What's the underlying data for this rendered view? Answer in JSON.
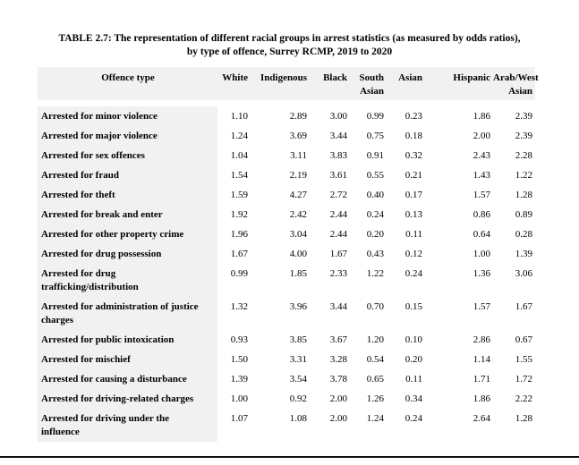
{
  "caption": {
    "line1": "TABLE 2.7: The representation of different racial groups in arrest statistics (as measured by odds ratios),",
    "line2": "by type of offence, Surrey RCMP, 2019 to 2020"
  },
  "table": {
    "columns": [
      "Offence type",
      "White",
      "Indigenous",
      "Black",
      "South\nAsian",
      "Asian",
      "Hispanic",
      "Arab/West\nAsian"
    ],
    "rows": [
      {
        "offence": "Arrested for minor violence",
        "values": [
          "1.10",
          "2.89",
          "3.00",
          "0.99",
          "0.23",
          "1.86",
          "2.39"
        ]
      },
      {
        "offence": "Arrested for major violence",
        "values": [
          "1.24",
          "3.69",
          "3.44",
          "0.75",
          "0.18",
          "2.00",
          "2.39"
        ]
      },
      {
        "offence": "Arrested for sex offences",
        "values": [
          "1.04",
          "3.11",
          "3.83",
          "0.91",
          "0.32",
          "2.43",
          "2.28"
        ]
      },
      {
        "offence": "Arrested for fraud",
        "values": [
          "1.54",
          "2.19",
          "3.61",
          "0.55",
          "0.21",
          "1.43",
          "1.22"
        ]
      },
      {
        "offence": "Arrested for theft",
        "values": [
          "1.59",
          "4.27",
          "2.72",
          "0.40",
          "0.17",
          "1.57",
          "1.28"
        ]
      },
      {
        "offence": "Arrested for break and enter",
        "values": [
          "1.92",
          "2.42",
          "2.44",
          "0.24",
          "0.13",
          "0.86",
          "0.89"
        ]
      },
      {
        "offence": "Arrested for other property crime",
        "values": [
          "1.96",
          "3.04",
          "2.44",
          "0.20",
          "0.11",
          "0.64",
          "0.28"
        ]
      },
      {
        "offence": "Arrested for drug possession",
        "values": [
          "1.67",
          "4.00",
          "1.67",
          "0.43",
          "0.12",
          "1.00",
          "1.39"
        ]
      },
      {
        "offence": "Arrested for drug\ntrafficking/distribution",
        "values": [
          "0.99",
          "1.85",
          "2.33",
          "1.22",
          "0.24",
          "1.36",
          "3.06"
        ]
      },
      {
        "offence": "Arrested for administration of justice\ncharges",
        "values": [
          "1.32",
          "3.96",
          "3.44",
          "0.70",
          "0.15",
          "1.57",
          "1.67"
        ]
      },
      {
        "offence": "Arrested for public intoxication",
        "values": [
          "0.93",
          "3.85",
          "3.67",
          "1.20",
          "0.10",
          "2.86",
          "0.67"
        ]
      },
      {
        "offence": "Arrested for mischief",
        "values": [
          "1.50",
          "3.31",
          "3.28",
          "0.54",
          "0.20",
          "1.14",
          "1.55"
        ]
      },
      {
        "offence": "Arrested for causing a disturbance",
        "values": [
          "1.39",
          "3.54",
          "3.78",
          "0.65",
          "0.11",
          "1.71",
          "1.72"
        ]
      },
      {
        "offence": "Arrested for driving-related charges",
        "values": [
          "1.00",
          "0.92",
          "2.00",
          "1.26",
          "0.34",
          "1.86",
          "2.22"
        ]
      },
      {
        "offence": "Arrested for driving under the\ninfluence",
        "values": [
          "1.07",
          "1.08",
          "2.00",
          "1.24",
          "0.24",
          "2.64",
          "1.28"
        ]
      }
    ]
  },
  "colors": {
    "header_bg": "#f1f1f1",
    "label_bg": "#f1f1f1",
    "rule": "#111111"
  }
}
